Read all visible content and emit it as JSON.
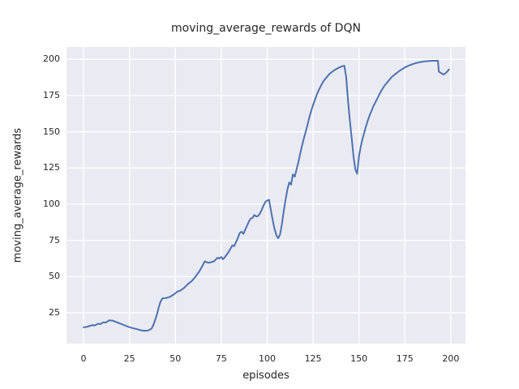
{
  "chart_data": {
    "type": "line",
    "title": "moving_average_rewards of DQN",
    "xlabel": "episodes",
    "ylabel": "moving_average_rewards",
    "xlim": [
      -9.3,
      208
    ],
    "ylim": [
      3.7,
      208.5
    ],
    "xticks": [
      0,
      25,
      50,
      75,
      100,
      125,
      150,
      175,
      200
    ],
    "yticks": [
      25,
      50,
      75,
      100,
      125,
      150,
      175,
      200
    ],
    "grid": true,
    "legend": false,
    "grid_color": "#ffffff",
    "background_color": "#eaeaf2",
    "line_color": "#4c72b0",
    "series": [
      {
        "name": "DQN",
        "x": [
          0,
          2,
          3,
          5,
          6,
          8,
          9,
          11,
          12,
          14,
          16,
          18,
          20,
          22,
          25,
          28,
          31,
          33,
          35,
          37,
          38,
          39,
          40,
          41,
          42,
          43,
          45,
          47,
          49,
          51,
          53,
          55,
          57,
          59,
          61,
          63,
          65,
          66,
          67,
          68,
          69,
          71,
          73,
          74,
          75,
          76,
          77,
          79,
          81,
          82,
          84,
          85,
          86,
          87,
          89,
          90,
          91,
          92,
          93,
          94,
          95,
          96,
          97,
          98,
          99,
          100,
          101,
          102,
          103,
          104,
          105,
          106,
          107,
          108,
          109,
          110,
          111,
          112,
          113,
          114,
          115,
          116,
          117,
          118,
          119,
          120,
          121,
          122,
          123,
          124,
          125,
          126,
          127,
          128,
          129,
          130,
          131,
          132,
          133,
          134,
          135,
          136,
          137,
          138,
          139,
          140,
          141,
          142,
          143,
          144,
          145,
          146,
          147,
          148,
          149,
          150,
          151,
          152,
          153,
          154,
          155,
          156,
          157,
          158,
          159,
          160,
          161,
          162,
          163,
          164,
          165,
          166,
          167,
          168,
          169,
          170,
          171,
          172,
          173,
          174,
          175,
          176,
          177,
          178,
          179,
          180,
          181,
          182,
          183,
          184,
          185,
          186,
          187,
          188,
          189,
          190,
          191,
          192,
          193,
          193.5,
          194,
          195,
          196,
          197,
          198,
          199
        ],
        "y": [
          15,
          15.3,
          15.8,
          16.5,
          16.2,
          17.5,
          17.1,
          18.5,
          18.2,
          19.8,
          19.5,
          18.5,
          17.5,
          16.5,
          15,
          14,
          13,
          12.5,
          12.7,
          14,
          16.5,
          20,
          24,
          29,
          33,
          35,
          35.2,
          36,
          37.5,
          39.5,
          40.5,
          42.5,
          45,
          47,
          50,
          53.5,
          58,
          60.5,
          60,
          59.5,
          59.8,
          60.5,
          63,
          62.5,
          63.5,
          62,
          63.5,
          67,
          71.5,
          71,
          76.5,
          80,
          81,
          79.5,
          85,
          88,
          90,
          90.5,
          92.5,
          91.5,
          91.8,
          93.5,
          96,
          99,
          101.5,
          102.5,
          103,
          96,
          89,
          83,
          78.5,
          76.5,
          79,
          86,
          95,
          103,
          110,
          115,
          113.5,
          120.5,
          119,
          124,
          129,
          135,
          140.5,
          145.5,
          150,
          155,
          160,
          164.5,
          168.5,
          172,
          175.5,
          178.5,
          181,
          183.5,
          185.5,
          187,
          188.5,
          190,
          191,
          192,
          192.8,
          193.5,
          194.2,
          194.8,
          195.3,
          195.6,
          188,
          172,
          158,
          146,
          133,
          124,
          121,
          133,
          140,
          145.5,
          150,
          154.5,
          158.5,
          162,
          165,
          168,
          170.5,
          173,
          175.5,
          178,
          180,
          182,
          183.5,
          185,
          186.5,
          188,
          189,
          190,
          191,
          192,
          192.8,
          193.6,
          194.4,
          195,
          195.6,
          196.1,
          196.6,
          197,
          197.4,
          197.7,
          198,
          198.2,
          198.4,
          198.6,
          198.7,
          198.8,
          198.9,
          199,
          199,
          199,
          199.1,
          191.5,
          191,
          190.3,
          189.5,
          190.2,
          191.5,
          193
        ]
      }
    ]
  }
}
